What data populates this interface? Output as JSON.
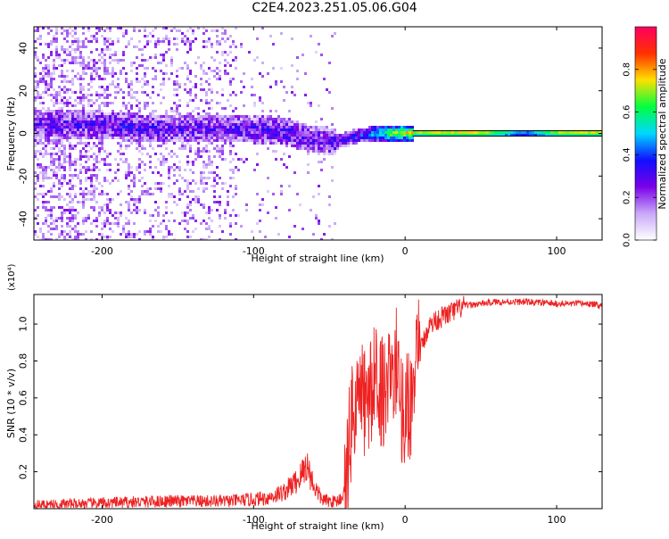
{
  "figure": {
    "title": "C2E4.2023.251.05.06.G04"
  },
  "chart_data": [
    {
      "type": "heatmap",
      "xlabel": "Height of straight line (km)",
      "ylabel": "Frequency (Hz)",
      "xlim": [
        -245,
        130
      ],
      "ylim": [
        -50,
        50
      ],
      "x_ticks": [
        -200,
        -100,
        0,
        100
      ],
      "y_ticks": [
        -40,
        -20,
        0,
        20,
        40
      ],
      "colorbar": {
        "label": "Normalized spectral amplitude",
        "ticks": [
          0.0,
          0.2,
          0.4,
          0.6,
          0.8
        ],
        "range": [
          0,
          1
        ],
        "colormap": [
          "#ffffff",
          "#c8a8f8",
          "#7a00e8",
          "#1010ff",
          "#00d8ff",
          "#00ff40",
          "#ffe000",
          "#ff3000",
          "#ff0060"
        ]
      },
      "ridge": [
        {
          "x": -200,
          "y": 4,
          "amp": 0.28
        },
        {
          "x": -180,
          "y": 3,
          "amp": 0.3
        },
        {
          "x": -160,
          "y": 2,
          "amp": 0.28
        },
        {
          "x": -140,
          "y": 2,
          "amp": 0.26
        },
        {
          "x": -120,
          "y": 2,
          "amp": 0.27
        },
        {
          "x": -100,
          "y": 2,
          "amp": 0.28
        },
        {
          "x": -80,
          "y": 1,
          "amp": 0.3
        },
        {
          "x": -60,
          "y": -3,
          "amp": 0.27
        },
        {
          "x": -45,
          "y": -4,
          "amp": 0.3
        },
        {
          "x": -30,
          "y": -1,
          "amp": 0.35
        },
        {
          "x": -15,
          "y": 0,
          "amp": 0.6
        },
        {
          "x": 0,
          "y": 0,
          "amp": 0.75
        },
        {
          "x": 20,
          "y": 0,
          "amp": 0.85
        },
        {
          "x": 50,
          "y": 0,
          "amp": 0.85
        },
        {
          "x": 80,
          "y": 0,
          "amp": 0.5
        },
        {
          "x": 100,
          "y": 0,
          "amp": 0.8
        },
        {
          "x": 130,
          "y": 0,
          "amp": 0.85
        }
      ],
      "line_frequency_hz": 0
    },
    {
      "type": "line",
      "xlabel": "Height of straight line (km)",
      "ylabel": "SNR (10 * v/v)",
      "y_multiplier": "(x10⁴)",
      "xlim": [
        -245,
        130
      ],
      "ylim": [
        0,
        1.16
      ],
      "x_ticks": [
        -200,
        -100,
        0,
        100
      ],
      "y_ticks": [
        0.2,
        0.4,
        0.6,
        0.8,
        1.0
      ],
      "series": [
        {
          "color": "#ee2222",
          "x": [
            -245,
            -200,
            -160,
            -120,
            -100,
            -90,
            -80,
            -70,
            -65,
            -60,
            -55,
            -50,
            -45,
            -40,
            -35,
            -30,
            -25,
            -20,
            -15,
            -10,
            -5,
            0,
            5,
            10,
            15,
            20,
            30,
            40,
            50,
            60,
            80,
            100,
            120,
            130
          ],
          "y": [
            0.02,
            0.03,
            0.04,
            0.04,
            0.05,
            0.06,
            0.09,
            0.16,
            0.24,
            0.12,
            0.05,
            0.04,
            0.04,
            0.08,
            0.5,
            0.62,
            0.55,
            0.7,
            0.64,
            0.72,
            0.65,
            0.5,
            0.62,
            0.85,
            0.98,
            1.02,
            1.06,
            1.1,
            1.11,
            1.12,
            1.12,
            1.11,
            1.11,
            1.1
          ]
        }
      ]
    }
  ]
}
